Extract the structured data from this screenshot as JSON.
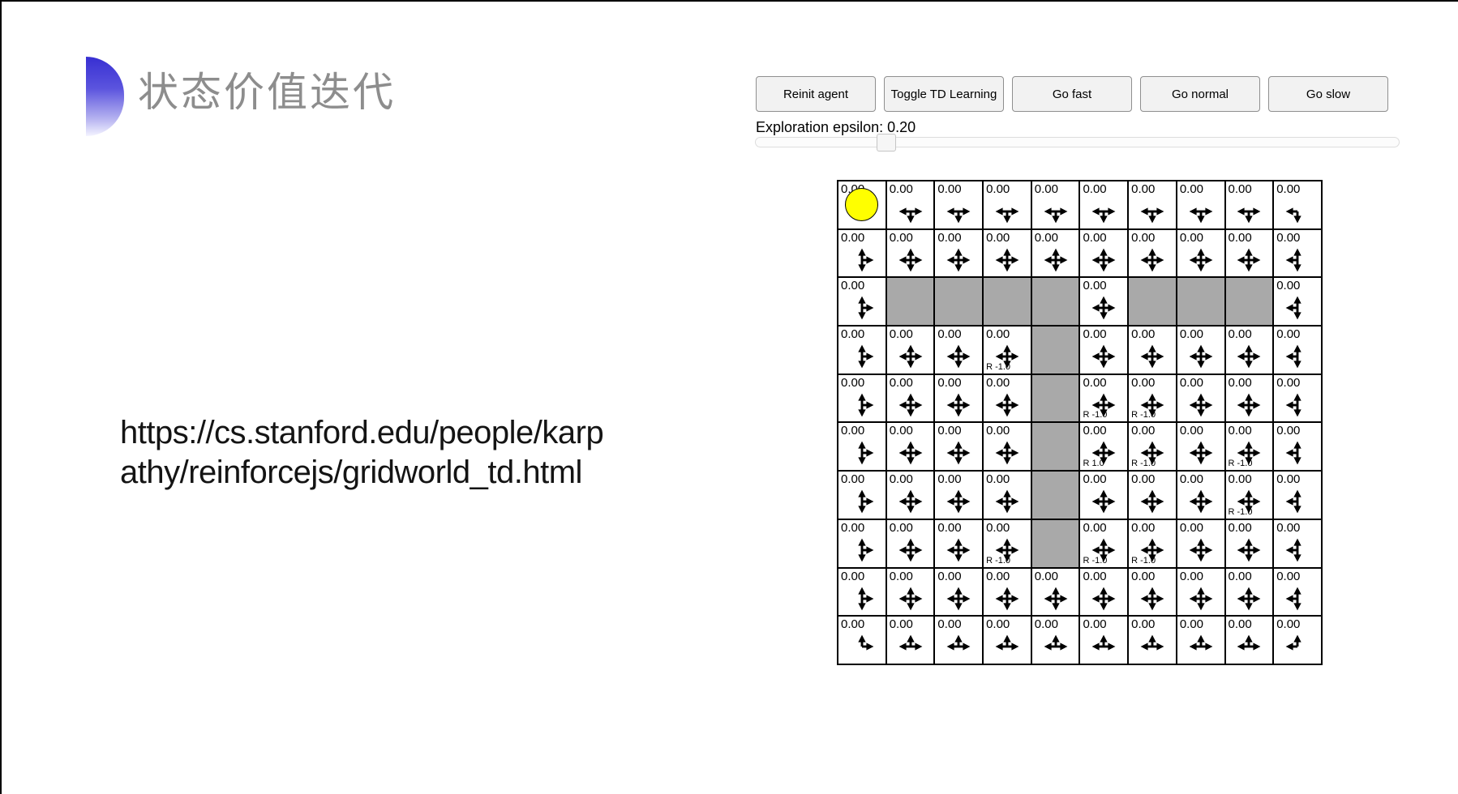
{
  "slide": {
    "title": "状态价值迭代",
    "url_line1": "https://cs.stanford.edu/people/karp",
    "url_line2": "athy/reinforcejs/gridworld_td.html"
  },
  "demo": {
    "buttons": [
      "Reinit agent",
      "Toggle TD Learning",
      "Go fast",
      "Go normal",
      "Go slow"
    ],
    "epsilon_label": "Exploration epsilon: ",
    "epsilon_value": "0.20"
  },
  "icons": {
    "policy_arrow": "multi-direction-policy-arrows",
    "agent": "yellow-agent-circle"
  },
  "colors": {
    "wall": "#a9a9a9",
    "agent_fill": "#ffff00",
    "accent_top": "#372fd2",
    "title_gray": "#8d8d8d"
  },
  "grid": {
    "rows": 10,
    "cols": 10,
    "cells": [
      [
        {
          "v": "0.00",
          "d": "",
          "agent": true
        },
        {
          "v": "0.00",
          "d": "lrd"
        },
        {
          "v": "0.00",
          "d": "lrd"
        },
        {
          "v": "0.00",
          "d": "lrd"
        },
        {
          "v": "0.00",
          "d": "lrd"
        },
        {
          "v": "0.00",
          "d": "lrd"
        },
        {
          "v": "0.00",
          "d": "lrd"
        },
        {
          "v": "0.00",
          "d": "lrd"
        },
        {
          "v": "0.00",
          "d": "lrd"
        },
        {
          "v": "0.00",
          "d": "ld"
        }
      ],
      [
        {
          "v": "0.00",
          "d": "udr"
        },
        {
          "v": "0.00",
          "d": "udlr"
        },
        {
          "v": "0.00",
          "d": "udlr"
        },
        {
          "v": "0.00",
          "d": "udlr"
        },
        {
          "v": "0.00",
          "d": "udlr"
        },
        {
          "v": "0.00",
          "d": "udlr"
        },
        {
          "v": "0.00",
          "d": "udlr"
        },
        {
          "v": "0.00",
          "d": "udlr"
        },
        {
          "v": "0.00",
          "d": "udlr"
        },
        {
          "v": "0.00",
          "d": "udl"
        }
      ],
      [
        {
          "v": "0.00",
          "d": "udr"
        },
        {
          "wall": true
        },
        {
          "wall": true
        },
        {
          "wall": true
        },
        {
          "wall": true
        },
        {
          "v": "0.00",
          "d": "udlr"
        },
        {
          "wall": true
        },
        {
          "wall": true
        },
        {
          "wall": true
        },
        {
          "v": "0.00",
          "d": "udl"
        }
      ],
      [
        {
          "v": "0.00",
          "d": "udr"
        },
        {
          "v": "0.00",
          "d": "udlr"
        },
        {
          "v": "0.00",
          "d": "udlr"
        },
        {
          "v": "0.00",
          "d": "udlr",
          "r": "R -1.0"
        },
        {
          "wall": true
        },
        {
          "v": "0.00",
          "d": "udlr"
        },
        {
          "v": "0.00",
          "d": "udlr"
        },
        {
          "v": "0.00",
          "d": "udlr"
        },
        {
          "v": "0.00",
          "d": "udlr"
        },
        {
          "v": "0.00",
          "d": "udl"
        }
      ],
      [
        {
          "v": "0.00",
          "d": "udr"
        },
        {
          "v": "0.00",
          "d": "udlr"
        },
        {
          "v": "0.00",
          "d": "udlr"
        },
        {
          "v": "0.00",
          "d": "udlr"
        },
        {
          "wall": true
        },
        {
          "v": "0.00",
          "d": "udlr",
          "r": "R -1.0"
        },
        {
          "v": "0.00",
          "d": "udlr",
          "r": "R -1.0"
        },
        {
          "v": "0.00",
          "d": "udlr"
        },
        {
          "v": "0.00",
          "d": "udlr"
        },
        {
          "v": "0.00",
          "d": "udl"
        }
      ],
      [
        {
          "v": "0.00",
          "d": "udr"
        },
        {
          "v": "0.00",
          "d": "udlr"
        },
        {
          "v": "0.00",
          "d": "udlr"
        },
        {
          "v": "0.00",
          "d": "udlr"
        },
        {
          "wall": true
        },
        {
          "v": "0.00",
          "d": "udlr",
          "r": "R 1.0"
        },
        {
          "v": "0.00",
          "d": "udlr",
          "r": "R -1.0"
        },
        {
          "v": "0.00",
          "d": "udlr"
        },
        {
          "v": "0.00",
          "d": "udlr",
          "r": "R -1.0"
        },
        {
          "v": "0.00",
          "d": "udl"
        }
      ],
      [
        {
          "v": "0.00",
          "d": "udr"
        },
        {
          "v": "0.00",
          "d": "udlr"
        },
        {
          "v": "0.00",
          "d": "udlr"
        },
        {
          "v": "0.00",
          "d": "udlr"
        },
        {
          "wall": true
        },
        {
          "v": "0.00",
          "d": "udlr"
        },
        {
          "v": "0.00",
          "d": "udlr"
        },
        {
          "v": "0.00",
          "d": "udlr"
        },
        {
          "v": "0.00",
          "d": "udlr",
          "r": "R -1.0"
        },
        {
          "v": "0.00",
          "d": "udl"
        }
      ],
      [
        {
          "v": "0.00",
          "d": "udr"
        },
        {
          "v": "0.00",
          "d": "udlr"
        },
        {
          "v": "0.00",
          "d": "udlr"
        },
        {
          "v": "0.00",
          "d": "udlr",
          "r": "R -1.0"
        },
        {
          "wall": true
        },
        {
          "v": "0.00",
          "d": "udlr",
          "r": "R -1.0"
        },
        {
          "v": "0.00",
          "d": "udlr",
          "r": "R -1.0"
        },
        {
          "v": "0.00",
          "d": "udlr"
        },
        {
          "v": "0.00",
          "d": "udlr"
        },
        {
          "v": "0.00",
          "d": "udl"
        }
      ],
      [
        {
          "v": "0.00",
          "d": "udr"
        },
        {
          "v": "0.00",
          "d": "udlr"
        },
        {
          "v": "0.00",
          "d": "udlr"
        },
        {
          "v": "0.00",
          "d": "udlr"
        },
        {
          "v": "0.00",
          "d": "udlr"
        },
        {
          "v": "0.00",
          "d": "udlr"
        },
        {
          "v": "0.00",
          "d": "udlr"
        },
        {
          "v": "0.00",
          "d": "udlr"
        },
        {
          "v": "0.00",
          "d": "udlr"
        },
        {
          "v": "0.00",
          "d": "udl"
        }
      ],
      [
        {
          "v": "0.00",
          "d": "ur"
        },
        {
          "v": "0.00",
          "d": "lru"
        },
        {
          "v": "0.00",
          "d": "lru"
        },
        {
          "v": "0.00",
          "d": "lru"
        },
        {
          "v": "0.00",
          "d": "lru"
        },
        {
          "v": "0.00",
          "d": "lru"
        },
        {
          "v": "0.00",
          "d": "lru"
        },
        {
          "v": "0.00",
          "d": "lru"
        },
        {
          "v": "0.00",
          "d": "lru"
        },
        {
          "v": "0.00",
          "d": "ul"
        }
      ]
    ]
  }
}
